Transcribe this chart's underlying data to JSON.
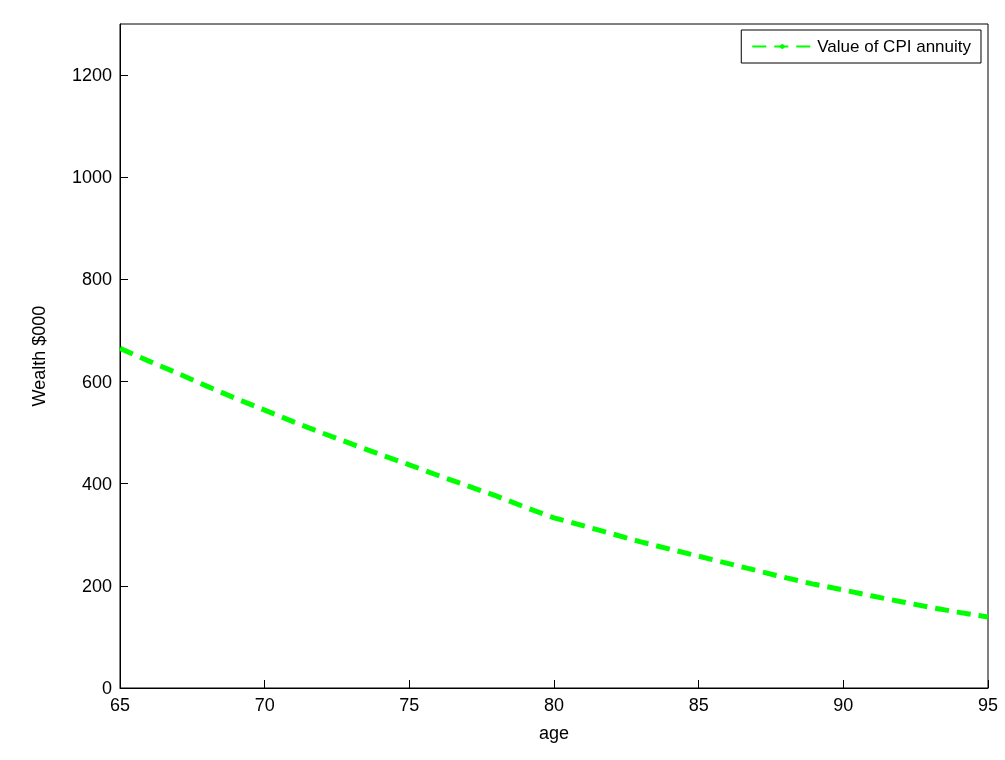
{
  "chart_data": {
    "type": "line",
    "xlabel": "age",
    "ylabel": "Wealth $000",
    "x": [
      65,
      66,
      67,
      68,
      69,
      70,
      71,
      72,
      73,
      74,
      75,
      76,
      77,
      78,
      79,
      80,
      81,
      82,
      83,
      84,
      85,
      86,
      87,
      88,
      89,
      90,
      91,
      92,
      93,
      94,
      95
    ],
    "series": [
      {
        "name": "Value of CPI annuity",
        "color": "#00ff00",
        "line_style": "dashed",
        "values": [
          665,
          640,
          616,
          591,
          567,
          544,
          521,
          499,
          478,
          457,
          437,
          416,
          396,
          376,
          354,
          333,
          318,
          302,
          286,
          272,
          258,
          244,
          230,
          216,
          203,
          192,
          180,
          169,
          158,
          148,
          139
        ]
      }
    ],
    "xlim": [
      65,
      95
    ],
    "xticks": [
      65,
      70,
      75,
      80,
      85,
      90,
      95
    ],
    "ylim": [
      0,
      1300
    ],
    "yticks": [
      0,
      200,
      400,
      600,
      800,
      1000,
      1200
    ],
    "grid": false,
    "legend": "top right",
    "marker": "none"
  }
}
